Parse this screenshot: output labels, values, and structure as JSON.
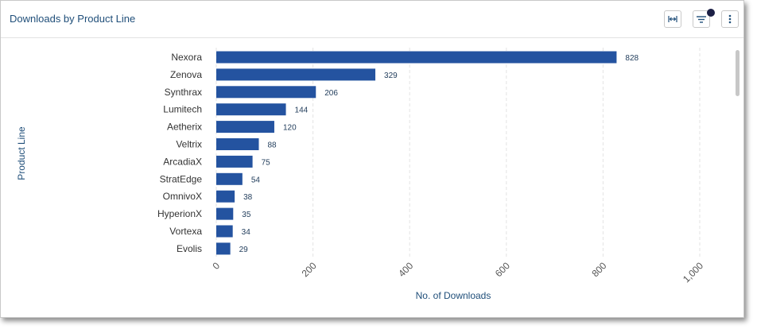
{
  "card": {
    "title": "Downloads by Product Line"
  },
  "toolbar": {
    "fit_icon": "fit-width-icon",
    "filter_icon": "filter-icon",
    "more_icon": "more-vertical-icon",
    "filter_active": true
  },
  "colors": {
    "bar": "#2453a0",
    "title": "#1f4e79",
    "grid": "#e3e3e3"
  },
  "chart_data": {
    "type": "bar",
    "orientation": "horizontal",
    "title": "",
    "xlabel": "No. of Downloads",
    "ylabel": "Product Line",
    "categories": [
      "Nexora",
      "Zenova",
      "Synthrax",
      "Lumitech",
      "Aetherix",
      "Veltrix",
      "ArcadiaX",
      "StratEdge",
      "OmnivoX",
      "HyperionX",
      "Vortexa",
      "Evolis"
    ],
    "values": [
      828,
      329,
      206,
      144,
      120,
      88,
      75,
      54,
      38,
      35,
      34,
      29
    ],
    "xlim": [
      0,
      1000
    ],
    "xticks": [
      0,
      200,
      400,
      600,
      800,
      1000
    ],
    "xtick_labels": [
      "0",
      "200",
      "400",
      "600",
      "800",
      "1,000"
    ],
    "grid": "vertical-dashed",
    "data_labels": true
  }
}
